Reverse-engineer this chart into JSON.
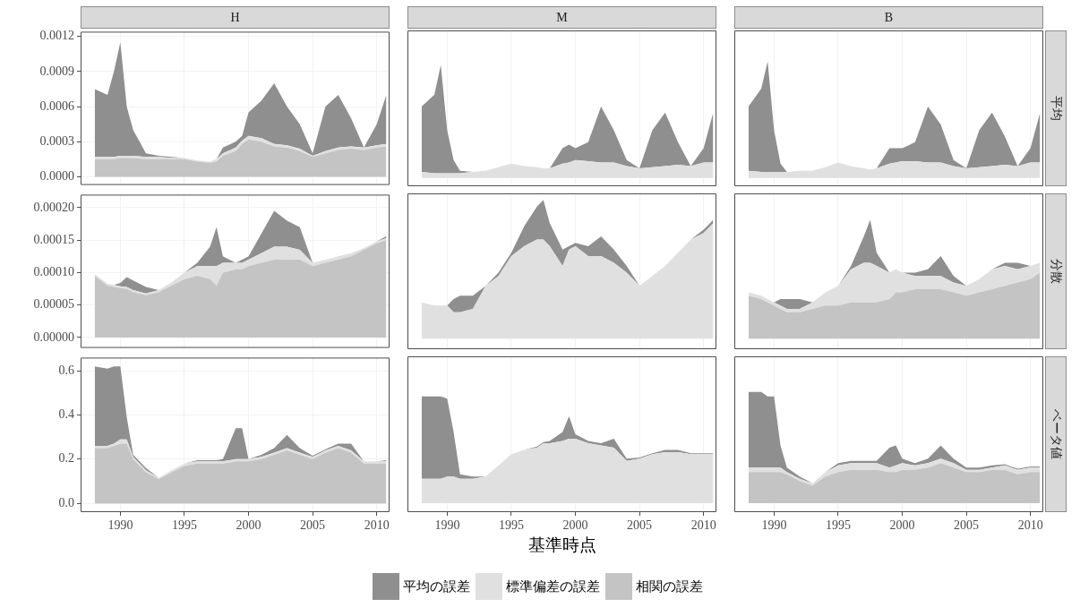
{
  "chart_data": [
    {
      "type": "area",
      "title": "H",
      "stacked": true,
      "grid": true,
      "tick_labels": "y",
      "x": [
        1988,
        1989,
        1989.5,
        1990,
        1990.5,
        1991,
        1992,
        1993,
        1994,
        1995,
        1996,
        1997,
        1997.5,
        1998,
        1999,
        1999.5,
        2000,
        2001,
        2002,
        2003,
        2004,
        2005,
        2006,
        2007,
        2008,
        2009,
        2010,
        2010.75
      ],
      "xlim": [
        1986.9,
        2011
      ],
      "xticks": [
        1990,
        1995,
        2000,
        2005,
        2010
      ],
      "ylim": [
        -7e-05,
        0.00124
      ],
      "yticks": [
        {
          "value": 0,
          "label": "0.0000"
        },
        {
          "value": 0.0003,
          "label": "0.0003"
        },
        {
          "value": 0.0006,
          "label": "0.0006"
        },
        {
          "value": 0.0009,
          "label": "0.0009"
        },
        {
          "value": 0.0012,
          "label": "0.0012"
        }
      ],
      "series": [
        {
          "color": "#c4c4c4",
          "values": [
            0.00015,
            0.00015,
            0.00015,
            0.00016,
            0.00016,
            0.00016,
            0.00015,
            0.00015,
            0.00015,
            0.00015,
            0.00013,
            0.00012,
            0.00013,
            0.00018,
            0.00022,
            0.00028,
            0.00032,
            0.0003,
            0.00026,
            0.00025,
            0.00022,
            0.00017,
            0.0002,
            0.00023,
            0.00024,
            0.00023,
            0.00025,
            0.00026
          ]
        },
        {
          "color": "#e0e0e0",
          "values": [
            2e-05,
            2e-05,
            2e-05,
            2e-05,
            2e-05,
            2e-05,
            2e-05,
            2e-05,
            1e-05,
            1e-05,
            1e-05,
            1e-05,
            2e-05,
            2e-05,
            3e-05,
            3e-05,
            3e-05,
            3e-05,
            2e-05,
            2e-05,
            2e-05,
            1e-05,
            2e-05,
            2e-05,
            2e-05,
            2e-05,
            2e-05,
            2e-05
          ]
        },
        {
          "color": "#8f8f8f",
          "values": [
            0.00058,
            0.00053,
            0.00073,
            0.00097,
            0.00042,
            0.00022,
            3e-05,
            1e-05,
            1e-05,
            0,
            0,
            0,
            0,
            5e-05,
            5e-05,
            4e-05,
            0.0002,
            0.00032,
            0.00052,
            0.00033,
            0.00021,
            2e-05,
            0.00038,
            0.00045,
            0.00024,
            0,
            0.00018,
            0.00042
          ]
        }
      ]
    },
    {
      "type": "area",
      "title": "M",
      "stacked": true,
      "grid": true,
      "tick_labels": false,
      "x": [
        1988,
        1989,
        1989.5,
        1990,
        1990.5,
        1991,
        1992,
        1993,
        1994,
        1995,
        1996,
        1997,
        1997.5,
        1998,
        1999,
        1999.5,
        2000,
        2001,
        2002,
        2003,
        2004,
        2005,
        2006,
        2007,
        2008,
        2009,
        2010,
        2010.75
      ],
      "xlim": [
        1986.9,
        2011
      ],
      "xticks": [
        1990,
        1995,
        2000,
        2005,
        2010
      ],
      "ylim": [
        -7e-05,
        0.00124
      ],
      "yticks": [
        {
          "value": 0,
          "label": null
        },
        {
          "value": 0.0003,
          "label": null
        },
        {
          "value": 0.0006,
          "label": null
        },
        {
          "value": 0.0009,
          "label": null
        },
        {
          "value": 0.0012,
          "label": null
        }
      ],
      "series": [
        {
          "color": "#e0e0e0",
          "values": [
            5e-05,
            4e-05,
            4e-05,
            4e-05,
            4e-05,
            4e-05,
            5e-05,
            6e-05,
            9e-05,
            0.00012,
            0.0001,
            9e-05,
            8e-05,
            8e-05,
            0.00012,
            0.00013,
            0.00015,
            0.00014,
            0.00013,
            0.00013,
            0.0001,
            8e-05,
            9e-05,
            0.0001,
            0.00011,
            0.0001,
            0.00013,
            0.00013
          ]
        },
        {
          "color": "#8f8f8f",
          "values": [
            0.00055,
            0.00066,
            0.00091,
            0.00036,
            0.00011,
            2e-05,
            0,
            0,
            0,
            0,
            0,
            0,
            0,
            0,
            0.00013,
            0.00015,
            0.0001,
            0.00016,
            0.00047,
            0.00027,
            5e-05,
            0,
            0.00031,
            0.00045,
            0.00019,
            0,
            0.00012,
            0.00042
          ]
        }
      ]
    },
    {
      "type": "area",
      "title": "B",
      "y2label": "平均",
      "stacked": true,
      "grid": true,
      "tick_labels": false,
      "x": [
        1988,
        1989,
        1989.5,
        1990,
        1990.5,
        1991,
        1992,
        1993,
        1994,
        1995,
        1996,
        1997,
        1997.5,
        1998,
        1999,
        1999.5,
        2000,
        2001,
        2002,
        2003,
        2004,
        2005,
        2006,
        2007,
        2008,
        2009,
        2010,
        2010.75
      ],
      "xlim": [
        1986.9,
        2011
      ],
      "xticks": [
        1990,
        1995,
        2000,
        2005,
        2010
      ],
      "ylim": [
        -7e-05,
        0.00124
      ],
      "yticks": [
        {
          "value": 0,
          "label": null
        },
        {
          "value": 0.0003,
          "label": null
        },
        {
          "value": 0.0006,
          "label": null
        },
        {
          "value": 0.0009,
          "label": null
        },
        {
          "value": 0.0012,
          "label": null
        }
      ],
      "series": [
        {
          "color": "#e0e0e0",
          "values": [
            6e-05,
            5e-05,
            5e-05,
            5e-05,
            5e-05,
            5e-05,
            6e-05,
            6e-05,
            9e-05,
            0.00013,
            0.0001,
            8e-05,
            7e-05,
            8e-05,
            0.00012,
            0.00013,
            0.00014,
            0.00014,
            0.00013,
            0.00013,
            0.0001,
            8e-05,
            9e-05,
            0.0001,
            0.00011,
            0.0001,
            0.00013,
            0.00013
          ]
        },
        {
          "color": "#8f8f8f",
          "values": [
            0.00054,
            0.0007,
            0.00093,
            0.00035,
            7e-05,
            0,
            0,
            0,
            0,
            0,
            0,
            0,
            0,
            0,
            0.00013,
            0.00012,
            0.00011,
            0.00016,
            0.00047,
            0.00032,
            5e-05,
            0,
            0.00031,
            0.00045,
            0.00024,
            0,
            0.00012,
            0.00042
          ]
        }
      ]
    },
    {
      "type": "area",
      "stacked": true,
      "grid": true,
      "tick_labels": "y",
      "x": [
        1988,
        1989,
        1989.5,
        1990,
        1990.5,
        1991,
        1992,
        1993,
        1994,
        1995,
        1996,
        1997,
        1997.5,
        1998,
        1999,
        1999.5,
        2000,
        2001,
        2002,
        2003,
        2004,
        2005,
        2006,
        2007,
        2008,
        2009,
        2010,
        2010.75
      ],
      "xlim": [
        1986.9,
        2011
      ],
      "xticks": [
        1990,
        1995,
        2000,
        2005,
        2010
      ],
      "ylim": [
        -1.6e-05,
        0.00022
      ],
      "yticks": [
        {
          "value": 0,
          "label": "0.00000"
        },
        {
          "value": 5e-05,
          "label": "0.00005"
        },
        {
          "value": 0.0001,
          "label": "0.00010"
        },
        {
          "value": 0.00015,
          "label": "0.00015"
        },
        {
          "value": 0.0002,
          "label": "0.00020"
        }
      ],
      "series": [
        {
          "color": "#c4c4c4",
          "values": [
            9.5e-05,
            8e-05,
            7.8e-05,
            7.6e-05,
            7.5e-05,
            7e-05,
            6.5e-05,
            7e-05,
            8e-05,
            9e-05,
            9.5e-05,
            9e-05,
            8e-05,
            0.0001,
            0.000105,
            0.000105,
            0.00011,
            0.000115,
            0.00012,
            0.00012,
            0.00012,
            0.00011,
            0.000115,
            0.00012,
            0.000125,
            0.000135,
            0.000145,
            0.00015
          ]
        },
        {
          "color": "#e0e0e0",
          "values": [
            3e-06,
            3e-06,
            3e-06,
            3e-06,
            3e-06,
            3e-06,
            3e-06,
            3e-06,
            5e-06,
            1e-05,
            1.5e-05,
            2e-05,
            3e-05,
            1.5e-05,
            1e-05,
            1e-05,
            1e-05,
            1.5e-05,
            2e-05,
            2e-05,
            1.5e-05,
            5e-06,
            5e-06,
            5e-06,
            5e-06,
            3e-06,
            3e-06,
            3e-06
          ]
        },
        {
          "color": "#8f8f8f",
          "values": [
            0,
            0,
            0,
            5e-06,
            1.5e-05,
            1.5e-05,
            1e-05,
            0,
            0,
            0,
            5e-06,
            3e-05,
            6e-05,
            1e-05,
            0,
            5e-06,
            5e-06,
            3e-05,
            5.5e-05,
            4e-05,
            3.5e-05,
            0,
            0,
            0,
            0,
            0,
            0,
            3e-06
          ]
        }
      ]
    },
    {
      "type": "area",
      "stacked": true,
      "grid": true,
      "tick_labels": false,
      "x": [
        1988,
        1989,
        1989.5,
        1990,
        1990.5,
        1991,
        1992,
        1993,
        1994,
        1995,
        1996,
        1997,
        1997.5,
        1998,
        1999,
        1999.5,
        2000,
        2001,
        2002,
        2003,
        2004,
        2005,
        2006,
        2007,
        2008,
        2009,
        2010,
        2010.75
      ],
      "xlim": [
        1986.9,
        2011
      ],
      "xticks": [
        1990,
        1995,
        2000,
        2005,
        2010
      ],
      "ylim": [
        -1.6e-05,
        0.00022
      ],
      "yticks": [
        {
          "value": 0,
          "label": null
        },
        {
          "value": 5e-05,
          "label": null
        },
        {
          "value": 0.0001,
          "label": null
        },
        {
          "value": 0.00015,
          "label": null
        },
        {
          "value": 0.0002,
          "label": null
        }
      ],
      "series": [
        {
          "color": "#e0e0e0",
          "values": [
            5.5e-05,
            5e-05,
            5e-05,
            5e-05,
            4e-05,
            4e-05,
            4.5e-05,
            8e-05,
            9.5e-05,
            0.000125,
            0.00014,
            0.00015,
            0.00015,
            0.00014,
            0.00011,
            0.000135,
            0.00014,
            0.000125,
            0.000125,
            0.000115,
            0.0001,
            8e-05,
            9.5e-05,
            0.00011,
            0.00013,
            0.00015,
            0.00016,
            0.000175
          ]
        },
        {
          "color": "#8f8f8f",
          "values": [
            0,
            0,
            0,
            0,
            2e-05,
            2.5e-05,
            2e-05,
            0,
            5e-06,
            5e-06,
            3e-05,
            5e-05,
            6e-05,
            3.5e-05,
            2.5e-05,
            5e-06,
            5e-06,
            1.5e-05,
            3e-05,
            2e-05,
            1e-05,
            0,
            0,
            0,
            0,
            0,
            5e-06,
            5e-06
          ]
        }
      ]
    },
    {
      "type": "area",
      "y2label": "分散",
      "stacked": true,
      "grid": true,
      "tick_labels": false,
      "x": [
        1988,
        1989,
        1989.5,
        1990,
        1990.5,
        1991,
        1992,
        1993,
        1994,
        1995,
        1996,
        1997,
        1997.5,
        1998,
        1999,
        1999.5,
        2000,
        2001,
        2002,
        2003,
        2004,
        2005,
        2006,
        2007,
        2008,
        2009,
        2010,
        2010.75
      ],
      "xlim": [
        1986.9,
        2011
      ],
      "xticks": [
        1990,
        1995,
        2000,
        2005,
        2010
      ],
      "ylim": [
        -1.6e-05,
        0.00022
      ],
      "yticks": [
        {
          "value": 0,
          "label": null
        },
        {
          "value": 5e-05,
          "label": null
        },
        {
          "value": 0.0001,
          "label": null
        },
        {
          "value": 0.00015,
          "label": null
        },
        {
          "value": 0.0002,
          "label": null
        }
      ],
      "series": [
        {
          "color": "#c4c4c4",
          "values": [
            6.5e-05,
            6e-05,
            5.5e-05,
            5e-05,
            4.5e-05,
            4e-05,
            4e-05,
            4.5e-05,
            5e-05,
            5e-05,
            5.5e-05,
            5.5e-05,
            5.5e-05,
            5.5e-05,
            6e-05,
            7e-05,
            7e-05,
            7.5e-05,
            7.5e-05,
            7.5e-05,
            7e-05,
            6.5e-05,
            7e-05,
            7.5e-05,
            8e-05,
            8.5e-05,
            9e-05,
            0.0001
          ]
        },
        {
          "color": "#e0e0e0",
          "values": [
            5e-06,
            5e-06,
            5e-06,
            5e-06,
            5e-06,
            5e-06,
            5e-06,
            1e-05,
            2e-05,
            3e-05,
            5e-05,
            6e-05,
            6e-05,
            5.5e-05,
            4e-05,
            3.5e-05,
            3e-05,
            2e-05,
            2e-05,
            2e-05,
            1.5e-05,
            1.5e-05,
            2e-05,
            3e-05,
            3e-05,
            2e-05,
            2e-05,
            1.5e-05
          ]
        },
        {
          "color": "#8f8f8f",
          "values": [
            0,
            0,
            0,
            0,
            1e-05,
            1.5e-05,
            1.5e-05,
            0,
            0,
            0,
            5e-06,
            4e-05,
            6.5e-05,
            2e-05,
            0,
            0,
            0,
            5e-06,
            1e-05,
            3e-05,
            1e-05,
            0,
            0,
            0,
            5e-06,
            1e-05,
            0,
            0
          ]
        }
      ]
    },
    {
      "type": "area",
      "stacked": true,
      "grid": true,
      "legend": "bottom",
      "x": [
        1988,
        1989,
        1989.5,
        1990,
        1990.5,
        1991,
        1992,
        1993,
        1994,
        1995,
        1996,
        1997,
        1997.5,
        1998,
        1999,
        1999.5,
        2000,
        2001,
        2002,
        2003,
        2004,
        2005,
        2006,
        2007,
        2008,
        2009,
        2010,
        2010.75
      ],
      "xlim": [
        1986.9,
        2011
      ],
      "xticks": [
        1990,
        1995,
        2000,
        2005,
        2010
      ],
      "ylim": [
        -0.04,
        0.66
      ],
      "yticks": [
        {
          "value": 0,
          "label": "0.0"
        },
        {
          "value": 0.2,
          "label": "0.2"
        },
        {
          "value": 0.4,
          "label": "0.4"
        },
        {
          "value": 0.6,
          "label": "0.6"
        }
      ],
      "series": [
        {
          "name": "相関の誤差",
          "color": "#c4c4c4",
          "values": [
            0.25,
            0.25,
            0.26,
            0.27,
            0.27,
            0.2,
            0.14,
            0.11,
            0.14,
            0.17,
            0.18,
            0.18,
            0.18,
            0.18,
            0.19,
            0.19,
            0.19,
            0.2,
            0.22,
            0.24,
            0.22,
            0.2,
            0.23,
            0.25,
            0.23,
            0.18,
            0.18,
            0.18
          ]
        },
        {
          "name": "標準偏差の誤差",
          "color": "#e0e0e0",
          "values": [
            0.01,
            0.01,
            0.01,
            0.02,
            0.02,
            0.01,
            0.01,
            0.005,
            0.01,
            0.01,
            0.01,
            0.01,
            0.01,
            0.01,
            0.01,
            0.01,
            0.01,
            0.01,
            0.01,
            0.01,
            0.01,
            0.01,
            0.01,
            0.01,
            0.01,
            0.01,
            0.01,
            0.01
          ]
        },
        {
          "name": "平均の誤差",
          "color": "#8f8f8f",
          "values": [
            0.36,
            0.35,
            0.35,
            0.33,
            0.1,
            0.01,
            0.01,
            0,
            0,
            0,
            0.005,
            0.005,
            0.005,
            0.01,
            0.14,
            0.14,
            0,
            0.01,
            0.02,
            0.06,
            0.02,
            0.005,
            0.005,
            0.01,
            0.03,
            0,
            0,
            0.005
          ]
        }
      ]
    },
    {
      "type": "area",
      "xlabel": "基準時点",
      "stacked": true,
      "grid": true,
      "tick_labels": "x",
      "x": [
        1988,
        1989,
        1989.5,
        1990,
        1990.5,
        1991,
        1992,
        1993,
        1994,
        1995,
        1996,
        1997,
        1997.5,
        1998,
        1999,
        1999.5,
        2000,
        2001,
        2002,
        2003,
        2004,
        2005,
        2006,
        2007,
        2008,
        2009,
        2010,
        2010.75
      ],
      "xlim": [
        1986.9,
        2011
      ],
      "xticks": [
        1990,
        1995,
        2000,
        2005,
        2010
      ],
      "ylim": [
        -0.04,
        0.66
      ],
      "yticks": [
        {
          "value": 0,
          "label": null
        },
        {
          "value": 0.2,
          "label": null
        },
        {
          "value": 0.4,
          "label": null
        },
        {
          "value": 0.6,
          "label": null
        }
      ],
      "series": [
        {
          "color": "#e0e0e0",
          "values": [
            0.11,
            0.11,
            0.11,
            0.12,
            0.12,
            0.11,
            0.11,
            0.12,
            0.17,
            0.22,
            0.24,
            0.25,
            0.27,
            0.27,
            0.28,
            0.29,
            0.29,
            0.27,
            0.26,
            0.25,
            0.19,
            0.2,
            0.22,
            0.23,
            0.23,
            0.22,
            0.22,
            0.22
          ]
        },
        {
          "color": "#8f8f8f",
          "values": [
            0.37,
            0.37,
            0.37,
            0.35,
            0.2,
            0.02,
            0.01,
            0,
            0,
            0,
            0,
            0.005,
            0.005,
            0.01,
            0.04,
            0.1,
            0.02,
            0.01,
            0.01,
            0.04,
            0.01,
            0.005,
            0.005,
            0.01,
            0.01,
            0.005,
            0.005,
            0.005
          ]
        }
      ]
    },
    {
      "type": "area",
      "y2label": "ベータ値",
      "stacked": true,
      "grid": true,
      "tick_labels": "x",
      "x": [
        1988,
        1989,
        1989.5,
        1990,
        1990.5,
        1991,
        1992,
        1993,
        1994,
        1995,
        1996,
        1997,
        1997.5,
        1998,
        1999,
        1999.5,
        2000,
        2001,
        2002,
        2003,
        2004,
        2005,
        2006,
        2007,
        2008,
        2009,
        2010,
        2010.75
      ],
      "xlim": [
        1986.9,
        2011
      ],
      "xticks": [
        1990,
        1995,
        2000,
        2005,
        2010
      ],
      "ylim": [
        -0.04,
        0.66
      ],
      "yticks": [
        {
          "value": 0,
          "label": null
        },
        {
          "value": 0.2,
          "label": null
        },
        {
          "value": 0.4,
          "label": null
        },
        {
          "value": 0.6,
          "label": null
        }
      ],
      "series": [
        {
          "color": "#c4c4c4",
          "values": [
            0.14,
            0.14,
            0.14,
            0.14,
            0.14,
            0.13,
            0.1,
            0.08,
            0.12,
            0.14,
            0.15,
            0.15,
            0.15,
            0.15,
            0.14,
            0.14,
            0.15,
            0.15,
            0.16,
            0.18,
            0.16,
            0.14,
            0.14,
            0.15,
            0.15,
            0.13,
            0.14,
            0.14
          ]
        },
        {
          "color": "#e0e0e0",
          "values": [
            0.02,
            0.02,
            0.02,
            0.02,
            0.02,
            0.01,
            0.01,
            0.01,
            0.02,
            0.03,
            0.03,
            0.03,
            0.03,
            0.03,
            0.02,
            0.03,
            0.03,
            0.02,
            0.02,
            0.02,
            0.02,
            0.01,
            0.01,
            0.01,
            0.02,
            0.02,
            0.02,
            0.02
          ]
        },
        {
          "color": "#8f8f8f",
          "values": [
            0.34,
            0.34,
            0.32,
            0.32,
            0.1,
            0.02,
            0.01,
            0,
            0,
            0.01,
            0.01,
            0.01,
            0.01,
            0.01,
            0.09,
            0.09,
            0.02,
            0.01,
            0.02,
            0.06,
            0.02,
            0.01,
            0.01,
            0.01,
            0.005,
            0.005,
            0.005,
            0.005
          ]
        }
      ]
    }
  ]
}
